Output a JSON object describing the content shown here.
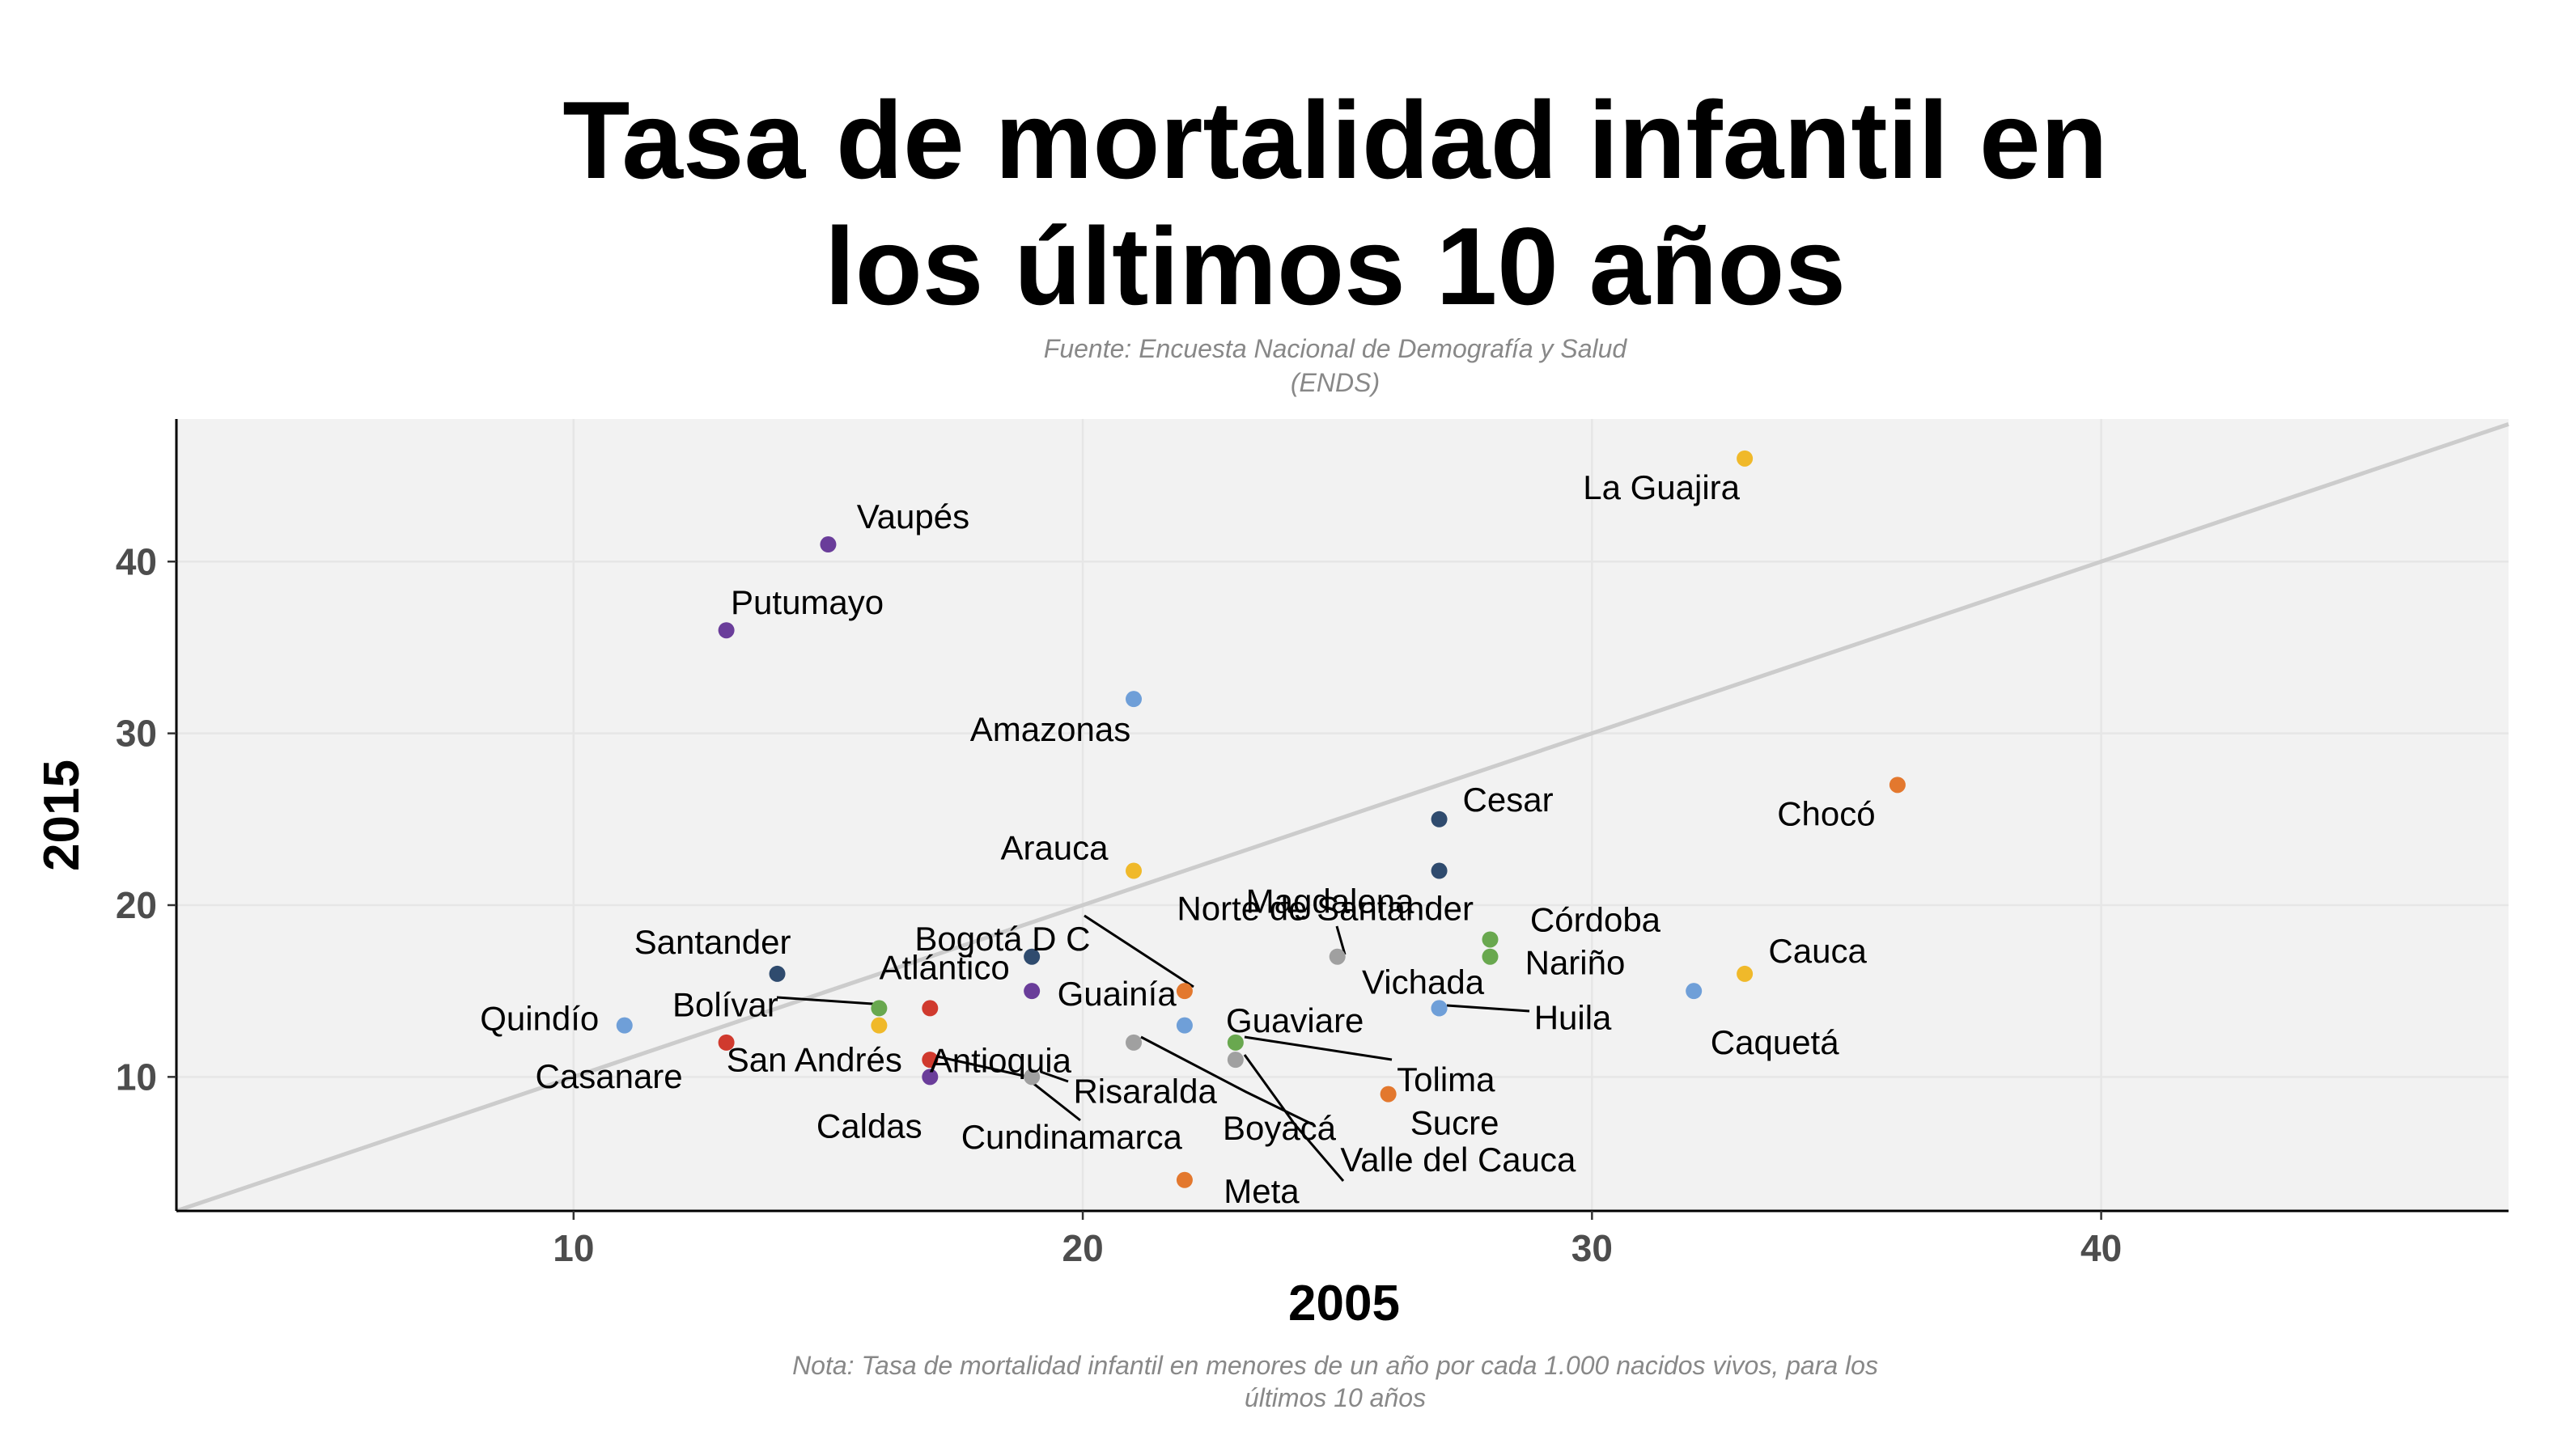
{
  "chart_data": {
    "type": "scatter",
    "title_lines": [
      "Tasa de mortalidad infantil en",
      "los últimos 10 años"
    ],
    "subtitle_lines": [
      "Fuente: Encuesta Nacional de Demografía y Salud",
      "(ENDS)"
    ],
    "caption_lines": [
      "Nota: Tasa de mortalidad infantil en menores de un año por cada 1.000 nacidos vivos, para los",
      "últimos 10 años"
    ],
    "xlabel": "2005",
    "ylabel": "2015",
    "xlim": [
      2.2,
      48
    ],
    "ylim": [
      2.2,
      48.3
    ],
    "xticks": [
      10,
      20,
      30,
      40
    ],
    "yticks": [
      10,
      20,
      30,
      40
    ],
    "grid": true,
    "reference_line": "y = x",
    "colors": {
      "panel_background": "#f2f2f2",
      "grid": "#e6e6e6",
      "reference_line": "#cccccc",
      "purple": "#6a3d9a",
      "navy": "#2f4b6e",
      "blue": "#6f9fd8",
      "gold": "#f0b92a",
      "orange": "#e3782e",
      "green": "#69a84f",
      "red": "#d03a2e",
      "gray": "#a0a0a0"
    },
    "points": [
      {
        "label": "La Guajira",
        "x": 33,
        "y": 46,
        "color": "#f0b92a"
      },
      {
        "label": "Vaupés",
        "x": 15,
        "y": 41,
        "color": "#6a3d9a"
      },
      {
        "label": "Putumayo",
        "x": 13,
        "y": 36,
        "color": "#6a3d9a"
      },
      {
        "label": "Amazonas",
        "x": 21,
        "y": 32,
        "color": "#6f9fd8"
      },
      {
        "label": "Chocó",
        "x": 36,
        "y": 27,
        "color": "#e3782e"
      },
      {
        "label": "Cesar",
        "x": 27,
        "y": 25,
        "color": "#2f4b6e"
      },
      {
        "label": "Magdalena",
        "x": 27,
        "y": 22,
        "color": "#2f4b6e"
      },
      {
        "label": "Arauca",
        "x": 21,
        "y": 22,
        "color": "#f0b92a"
      },
      {
        "label": "Córdoba",
        "x": 28,
        "y": 18,
        "color": "#69a84f"
      },
      {
        "label": "Nariño",
        "x": 28,
        "y": 17,
        "color": "#69a84f"
      },
      {
        "label": "Norte de Santander",
        "x": 25,
        "y": 17,
        "color": "#a0a0a0"
      },
      {
        "label": "Bogotá D C",
        "x": 22,
        "y": 15,
        "color": "#e3782e"
      },
      {
        "label": "Guainía",
        "x": 19,
        "y": 15,
        "color": "#6a3d9a"
      },
      {
        "label": "Atlántico",
        "x": 19,
        "y": 17,
        "color": "#2f4b6e"
      },
      {
        "label": "Santander",
        "x": 14,
        "y": 16,
        "color": "#2f4b6e"
      },
      {
        "label": "Cauca",
        "x": 33,
        "y": 16,
        "color": "#f0b92a"
      },
      {
        "label": "Caquetá",
        "x": 32,
        "y": 15,
        "color": "#6f9fd8"
      },
      {
        "label": "Vichada",
        "x": 27,
        "y": 14,
        "color": "#6f9fd8"
      },
      {
        "label": "Huila",
        "x": 27,
        "y": 14,
        "color": "#6f9fd8"
      },
      {
        "label": "Quindío",
        "x": 11,
        "y": 13,
        "color": "#6f9fd8"
      },
      {
        "label": "Bolívar",
        "x": 16,
        "y": 14,
        "color": "#69a84f"
      },
      {
        "label": "Casanare",
        "x": 13,
        "y": 12,
        "color": "#d03a2e"
      },
      {
        "label": "San Andrés",
        "x": 17,
        "y": 14,
        "color": "#d03a2e"
      },
      {
        "label": "Caldas",
        "x": 17,
        "y": 10,
        "color": "#6a3d9a"
      },
      {
        "label": "Cundinamarca",
        "x": 17,
        "y": 11,
        "color": "#d03a2e"
      },
      {
        "label": "Antioquia",
        "x": 16,
        "y": 13,
        "color": "#f0b92a"
      },
      {
        "label": "Risaralda",
        "x": 19,
        "y": 10,
        "color": "#a0a0a0"
      },
      {
        "label": "Guaviare",
        "x": 22,
        "y": 13,
        "color": "#6f9fd8"
      },
      {
        "label": "Boyacá",
        "x": 21,
        "y": 12,
        "color": "#a0a0a0"
      },
      {
        "label": "Tolima",
        "x": 23,
        "y": 12,
        "color": "#69a84f"
      },
      {
        "label": "Valle del Cauca",
        "x": 23,
        "y": 11,
        "color": "#a0a0a0"
      },
      {
        "label": "Sucre",
        "x": 26,
        "y": 9,
        "color": "#e3782e"
      },
      {
        "label": "Meta",
        "x": 22,
        "y": 4,
        "color": "#e3782e"
      }
    ]
  }
}
